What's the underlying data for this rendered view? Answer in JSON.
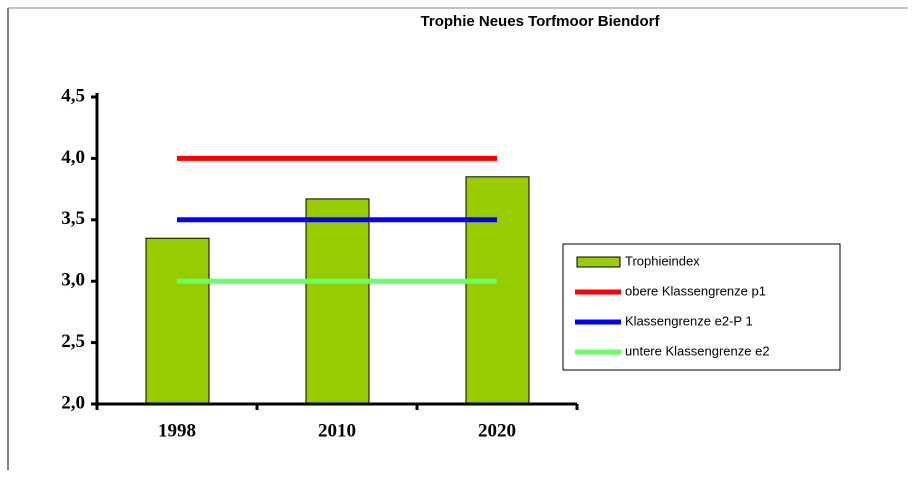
{
  "chart_data": {
    "type": "bar",
    "title": "Trophie Neues Torfmoor Biendorf",
    "categories": [
      "1998",
      "2010",
      "2020"
    ],
    "series": [
      {
        "name": "Trophieindex",
        "type": "bar",
        "color": "#99cc00",
        "values": [
          3.35,
          3.67,
          3.85
        ]
      },
      {
        "name": "obere Klassengrenze p1",
        "type": "line",
        "color": "#ff0000",
        "values": [
          4.0,
          4.0,
          4.0
        ]
      },
      {
        "name": "Klassengrenze e2-P 1",
        "type": "line",
        "color": "#0000ff",
        "values": [
          3.5,
          3.5,
          3.5
        ]
      },
      {
        "name": "untere Klassengrenze e2",
        "type": "line",
        "color": "#66ff66",
        "values": [
          3.0,
          3.0,
          3.0
        ]
      }
    ],
    "ylim": [
      2.0,
      4.5
    ],
    "yticks": [
      {
        "value": 2.0,
        "label": "2,0"
      },
      {
        "value": 2.5,
        "label": "2,5"
      },
      {
        "value": 3.0,
        "label": "3,0"
      },
      {
        "value": 3.5,
        "label": "3,5"
      },
      {
        "value": 4.0,
        "label": "4,0"
      },
      {
        "value": 4.5,
        "label": "4,5"
      }
    ],
    "grid": false,
    "legend": "right"
  }
}
